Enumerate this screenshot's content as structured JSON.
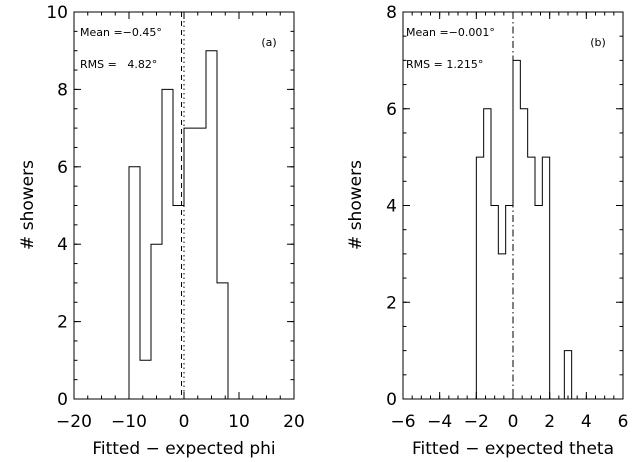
{
  "chart_data": [
    {
      "id": "a",
      "type": "histogram",
      "panel_label": "(a)",
      "xlabel": "Fitted − expected phi",
      "ylabel": "# showers",
      "xlim": [
        -20,
        20
      ],
      "ylim": [
        0,
        10
      ],
      "xticks": [
        -20,
        -10,
        0,
        10,
        20
      ],
      "xtick_labels": [
        "−20",
        "−10",
        "0",
        "10",
        "20"
      ],
      "yticks": [
        0,
        2,
        4,
        6,
        8,
        10
      ],
      "ytick_labels": [
        "0",
        "2",
        "4",
        "6",
        "8",
        "10"
      ],
      "bins": [
        {
          "x0": -10,
          "x1": -8,
          "count": 6
        },
        {
          "x0": -8,
          "x1": -6,
          "count": 1
        },
        {
          "x0": -6,
          "x1": -4,
          "count": 4
        },
        {
          "x0": -4,
          "x1": -2,
          "count": 8
        },
        {
          "x0": -2,
          "x1": 0,
          "count": 5
        },
        {
          "x0": 0,
          "x1": 4,
          "count": 7
        },
        {
          "x0": 4,
          "x1": 6,
          "count": 9
        },
        {
          "x0": 6,
          "x1": 8,
          "count": 3
        }
      ],
      "reference_lines": [
        {
          "x": -0.45,
          "style": "dashed"
        },
        {
          "x": 0,
          "style": "dotted"
        }
      ],
      "mean_text": "Mean =−0.45°",
      "rms_text": "RMS =   4.82°"
    },
    {
      "id": "b",
      "type": "histogram",
      "panel_label": "(b)",
      "xlabel": "Fitted − expected theta",
      "ylabel": "# showers",
      "xlim": [
        -6,
        6
      ],
      "ylim": [
        0,
        8
      ],
      "xticks": [
        -6,
        -4,
        -2,
        0,
        2,
        4,
        6
      ],
      "xtick_labels": [
        "−6",
        "−4",
        "−2",
        "0",
        "2",
        "4",
        "6"
      ],
      "yticks": [
        0,
        2,
        4,
        6,
        8
      ],
      "ytick_labels": [
        "0",
        "2",
        "4",
        "6",
        "8"
      ],
      "bins": [
        {
          "x0": -2,
          "x1": -1.6,
          "count": 5
        },
        {
          "x0": -1.6,
          "x1": -1.2,
          "count": 6
        },
        {
          "x0": -1.2,
          "x1": -0.8,
          "count": 4
        },
        {
          "x0": -0.8,
          "x1": -0.4,
          "count": 3
        },
        {
          "x0": -0.4,
          "x1": 0,
          "count": 4
        },
        {
          "x0": 0,
          "x1": 0.4,
          "count": 7
        },
        {
          "x0": 0.4,
          "x1": 0.8,
          "count": 6
        },
        {
          "x0": 0.8,
          "x1": 1.2,
          "count": 5
        },
        {
          "x0": 1.2,
          "x1": 1.6,
          "count": 4
        },
        {
          "x0": 1.6,
          "x1": 2,
          "count": 5
        },
        {
          "x0": 2.8,
          "x1": 3.2,
          "count": 1
        }
      ],
      "reference_lines": [
        {
          "x": 0,
          "style": "dashdot"
        }
      ],
      "mean_text": "Mean =−0.001°",
      "rms_text": "RMS = 1.215°"
    }
  ]
}
